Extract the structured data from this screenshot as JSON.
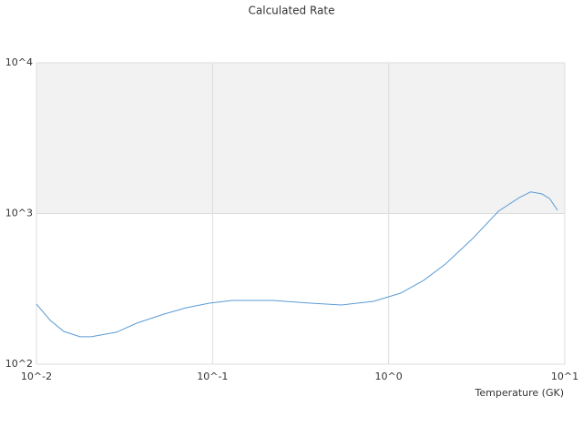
{
  "chart_data": {
    "type": "line",
    "title": "Calculated Rate",
    "x_label": "Temperature (GK)",
    "log_x": true,
    "log_y": true,
    "xlim": [
      0.01,
      10
    ],
    "ylim": [
      100,
      10000
    ],
    "xticks": [
      {
        "value": 0.01,
        "label": "10^-2"
      },
      {
        "value": 0.1,
        "label": "10^-1"
      },
      {
        "value": 1,
        "label": "10^0"
      },
      {
        "value": 10,
        "label": "10^1"
      }
    ],
    "yticks": [
      {
        "value": 100,
        "label": "10^2"
      },
      {
        "value": 1000,
        "label": "10^3"
      },
      {
        "value": 10000,
        "label": "10^4"
      }
    ],
    "series": [
      {
        "color": "#5b9bd5",
        "x": [
          0.01,
          0.012,
          0.0143,
          0.0177,
          0.0204,
          0.0285,
          0.037,
          0.053,
          0.071,
          0.096,
          0.13,
          0.22,
          0.36,
          0.54,
          0.82,
          1.17,
          1.58,
          2.1,
          3.0,
          4.2,
          5.5,
          6.4,
          7.4,
          8.2,
          9.1
        ],
        "values": [
          250,
          195,
          165,
          152,
          152,
          163,
          187,
          215,
          237,
          254,
          265,
          265,
          254,
          247,
          261,
          296,
          360,
          462,
          682,
          1035,
          1272,
          1390,
          1350,
          1257,
          1050
        ]
      }
    ]
  }
}
